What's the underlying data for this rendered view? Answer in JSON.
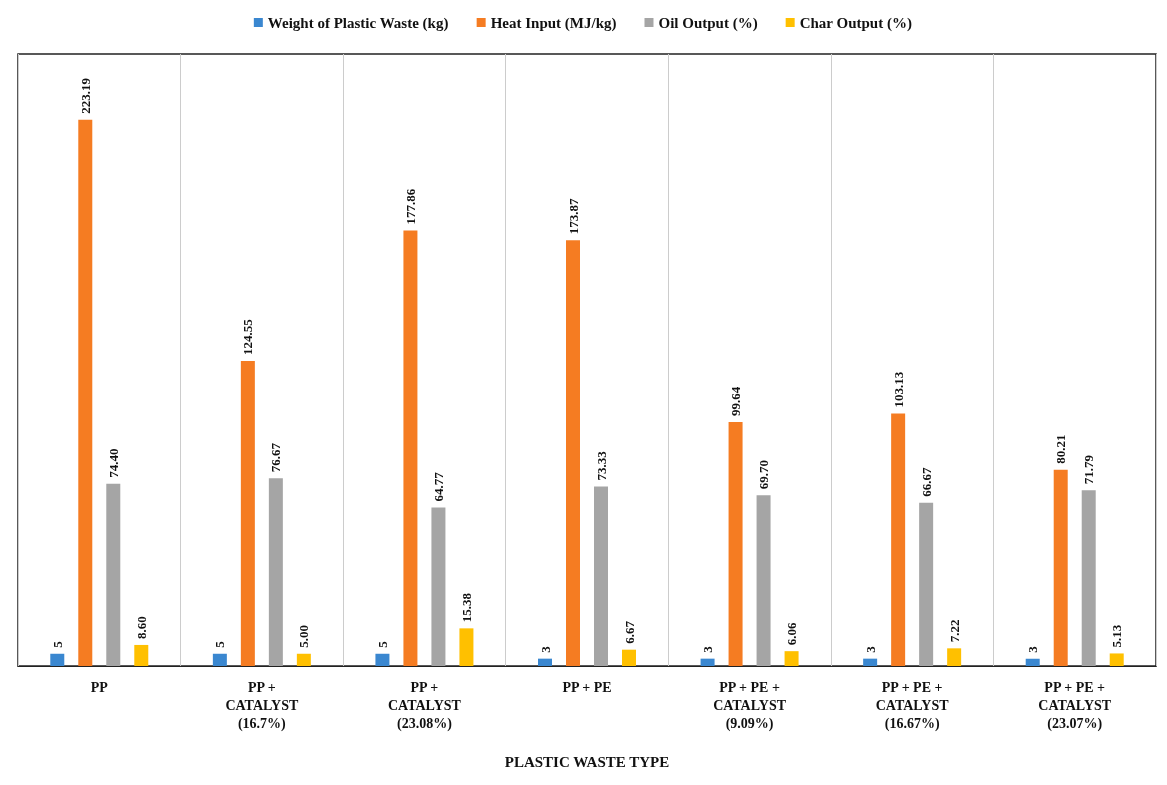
{
  "chart_data": {
    "type": "bar",
    "xlabel": "PLASTIC WASTE TYPE",
    "categories": [
      "PP",
      "PP +\nCATALYST\n(16.7%)",
      "PP +\nCATALYST\n(23.08%)",
      "PP + PE",
      "PP + PE +\nCATALYST\n(9.09%)",
      "PP + PE +\nCATALYST\n(16.67%)",
      "PP + PE +\nCATALYST\n(23.07%)"
    ],
    "series": [
      {
        "name": "Weight of Plastic Waste (kg)",
        "color": "#3a87d0",
        "values": [
          5,
          5,
          5,
          3,
          3,
          3,
          3
        ],
        "value_labels": [
          "5",
          "5",
          "5",
          "3",
          "3",
          "3",
          "3"
        ]
      },
      {
        "name": "Heat Input (MJ/kg)",
        "color": "#f57c22",
        "values": [
          223.19,
          124.55,
          177.86,
          173.87,
          99.64,
          103.13,
          80.21
        ],
        "value_labels": [
          "223.19",
          "124.55",
          "177.86",
          "173.87",
          "99.64",
          "103.13",
          "80.21"
        ]
      },
      {
        "name": "Oil Output (%)",
        "color": "#a5a5a5",
        "values": [
          74.4,
          76.67,
          64.77,
          73.33,
          69.7,
          66.67,
          71.79
        ],
        "value_labels": [
          "74.40",
          "76.67",
          "64.77",
          "73.33",
          "69.70",
          "66.67",
          "71.79"
        ]
      },
      {
        "name": "Char Output (%)",
        "color": "#ffc000",
        "values": [
          8.6,
          5,
          15.38,
          6.67,
          6.06,
          7.22,
          5.13
        ],
        "value_labels": [
          "8.60",
          "5.00",
          "15.38",
          "6.67",
          "6.06",
          "7.22",
          "5.13"
        ]
      }
    ],
    "grid": "x",
    "legend": "top"
  }
}
